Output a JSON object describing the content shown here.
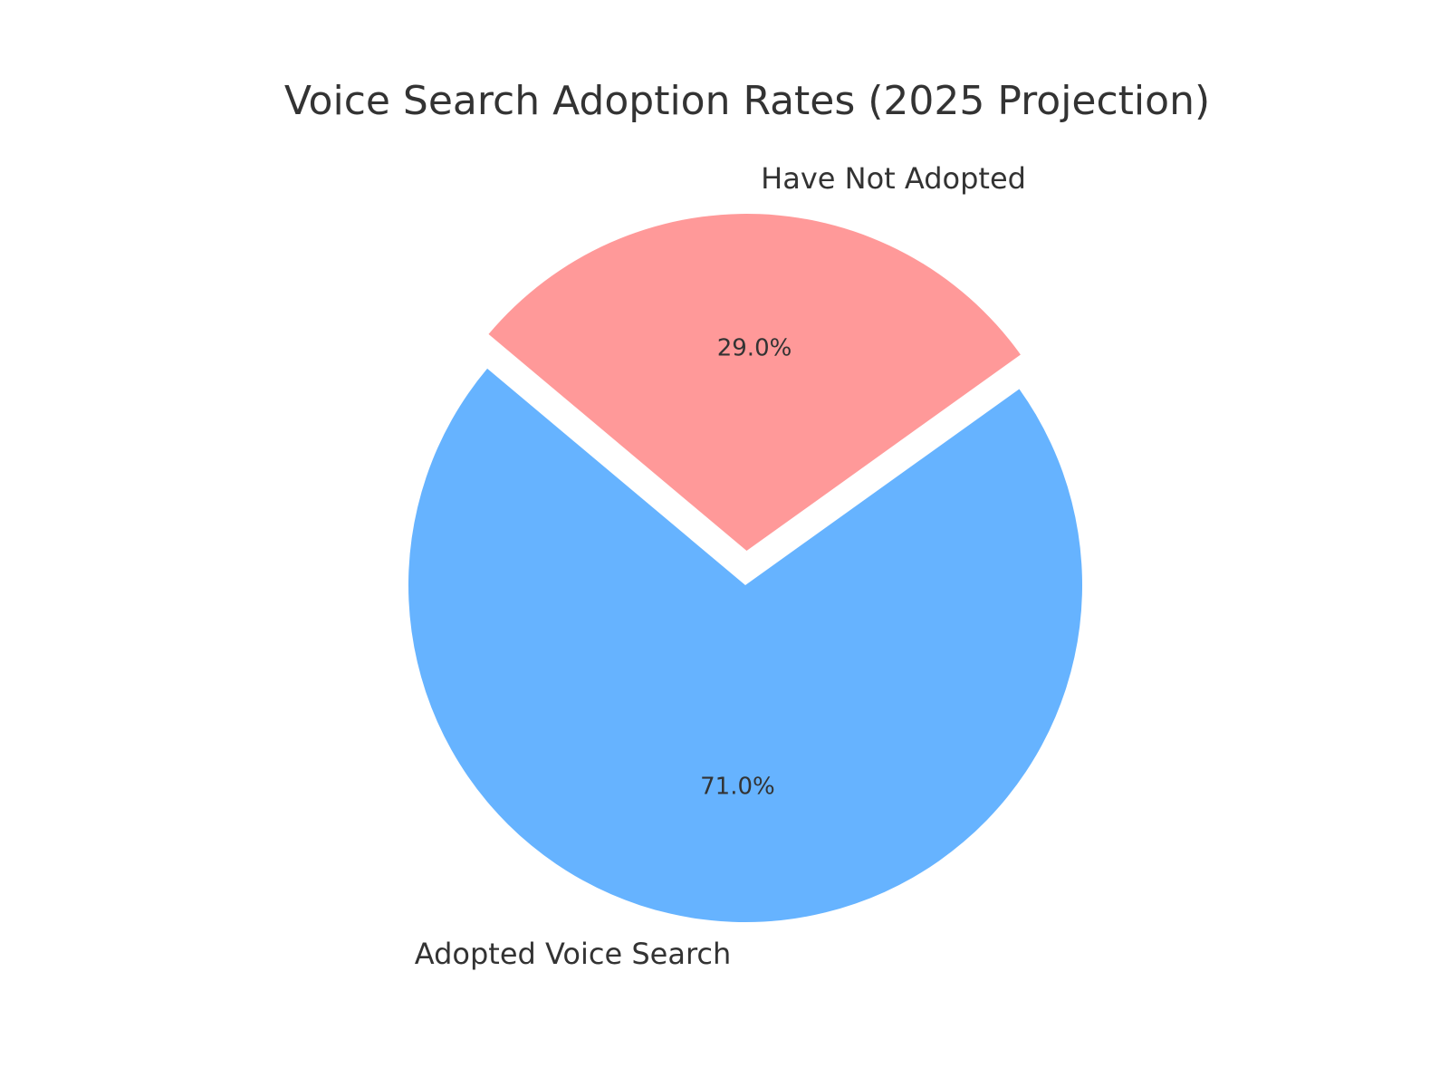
{
  "chart_data": {
    "type": "pie",
    "title": "Voice Search Adoption Rates (2025 Projection)",
    "slices": [
      {
        "label": "Adopted Voice Search",
        "value": 71.0,
        "pct_label": "71.0%",
        "color": "#66b3ff",
        "exploded": false
      },
      {
        "label": "Have Not Adopted",
        "value": 29.0,
        "pct_label": "29.0%",
        "color": "#ff9999",
        "exploded": true
      }
    ],
    "legend": "none"
  }
}
